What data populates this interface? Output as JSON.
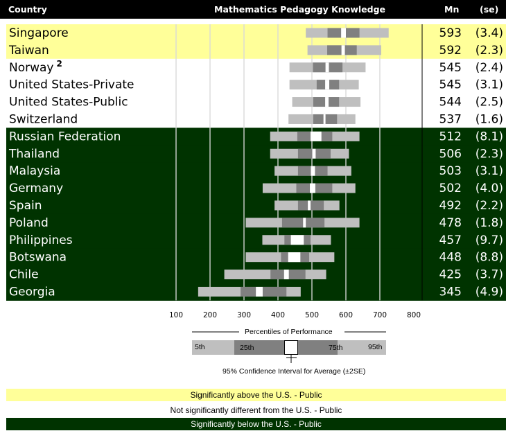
{
  "header": {
    "country": "Country",
    "title": "Mathematics Pedagogy Knowledge",
    "mean": "Mn",
    "se": "(se)"
  },
  "colors": {
    "above": "#ffff99",
    "not_different": "#ffffff",
    "below": "#003300",
    "light_bar": "#bfbfbf",
    "dark_bar": "#808080",
    "ci": "#ffffff"
  },
  "chart_data": {
    "type": "percentile_bar",
    "title": "Mathematics Pedagogy Knowledge",
    "x_ticks": [
      100,
      200,
      300,
      400,
      500,
      600,
      700,
      800
    ],
    "xlim": [
      100,
      800
    ],
    "gridlines": [
      300,
      400,
      500,
      600,
      700
    ],
    "rows": [
      {
        "country": "Singapore",
        "sup": "",
        "mean": "593",
        "se": "(3.4)",
        "group": "above",
        "p5": 482,
        "p25": 546,
        "p75": 640,
        "p95": 726,
        "ci": [
          586,
          600
        ]
      },
      {
        "country": "Taiwan",
        "sup": "",
        "mean": "592",
        "se": "(2.3)",
        "group": "above",
        "p5": 487,
        "p25": 545,
        "p75": 632,
        "p95": 704,
        "ci": [
          587,
          597
        ]
      },
      {
        "country": "Norway",
        "sup": "2",
        "mean": "545",
        "se": "(2.4)",
        "group": "not_different",
        "p5": 434,
        "p25": 503,
        "p75": 590,
        "p95": 658,
        "ci": [
          540,
          550
        ]
      },
      {
        "country": "United States-Private",
        "sup": "",
        "mean": "545",
        "se": "(3.1)",
        "group": "not_different",
        "p5": 434,
        "p25": 514,
        "p75": 580,
        "p95": 638,
        "ci": [
          539,
          551
        ]
      },
      {
        "country": "United States-Public",
        "sup": "",
        "mean": "544",
        "se": "(2.5)",
        "group": "not_different",
        "p5": 442,
        "p25": 504,
        "p75": 580,
        "p95": 643,
        "ci": [
          539,
          549
        ]
      },
      {
        "country": "Switzerland",
        "sup": "",
        "mean": "537",
        "se": "(1.6)",
        "group": "not_different",
        "p5": 431,
        "p25": 504,
        "p75": 574,
        "p95": 628,
        "ci": [
          534,
          540
        ]
      },
      {
        "country": "Russian Federation",
        "sup": "",
        "mean": "512",
        "se": "(8.1)",
        "group": "below",
        "p5": 377,
        "p25": 457,
        "p75": 560,
        "p95": 640,
        "ci": [
          496,
          528
        ]
      },
      {
        "country": "Thailand",
        "sup": "",
        "mean": "506",
        "se": "(2.3)",
        "group": "below",
        "p5": 377,
        "p25": 459,
        "p75": 555,
        "p95": 609,
        "ci": [
          501,
          511
        ]
      },
      {
        "country": "Malaysia",
        "sup": "",
        "mean": "503",
        "se": "(3.1)",
        "group": "below",
        "p5": 390,
        "p25": 459,
        "p75": 546,
        "p95": 616,
        "ci": [
          497,
          509
        ]
      },
      {
        "country": "Germany",
        "sup": "",
        "mean": "502",
        "se": "(4.0)",
        "group": "below",
        "p5": 355,
        "p25": 454,
        "p75": 560,
        "p95": 628,
        "ci": [
          494,
          510
        ]
      },
      {
        "country": "Spain",
        "sup": "",
        "mean": "492",
        "se": "(2.2)",
        "group": "below",
        "p5": 390,
        "p25": 459,
        "p75": 535,
        "p95": 581,
        "ci": [
          488,
          496
        ]
      },
      {
        "country": "Poland",
        "sup": "",
        "mean": "478",
        "se": "(1.8)",
        "group": "below",
        "p5": 305,
        "p25": 412,
        "p75": 537,
        "p95": 640,
        "ci": [
          474,
          482
        ]
      },
      {
        "country": "Philippines",
        "sup": "",
        "mean": "457",
        "se": "(9.7)",
        "group": "below",
        "p5": 354,
        "p25": 419,
        "p75": 496,
        "p95": 556,
        "ci": [
          438,
          476
        ]
      },
      {
        "country": "Botswana",
        "sup": "",
        "mean": "448",
        "se": "(8.8)",
        "group": "below",
        "p5": 305,
        "p25": 409,
        "p75": 492,
        "p95": 566,
        "ci": [
          430,
          466
        ]
      },
      {
        "country": "Chile",
        "sup": "",
        "mean": "425",
        "se": "(3.7)",
        "group": "below",
        "p5": 242,
        "p25": 378,
        "p75": 481,
        "p95": 542,
        "ci": [
          418,
          432
        ]
      },
      {
        "country": "Georgia",
        "sup": "",
        "mean": "345",
        "se": "(4.9)",
        "group": "below",
        "p5": 165,
        "p25": 290,
        "p75": 425,
        "p95": 467,
        "ci": [
          335,
          355
        ]
      }
    ]
  },
  "legend": {
    "title": "Percentiles of Performance",
    "p5": "5th",
    "p25": "25th",
    "p75": "75th",
    "p95": "95th",
    "ci_note": "95% Confidence Interval for Average (±2SE)"
  },
  "significance": {
    "above": "Significantly above the U.S. - Public",
    "not_different": "Not significantly different from the U.S. - Public",
    "below": "Significantly below the U.S. - Public"
  }
}
